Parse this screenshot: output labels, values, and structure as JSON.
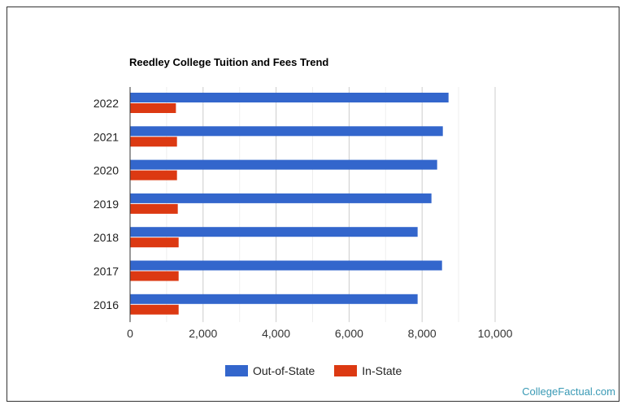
{
  "chart_data": {
    "type": "bar",
    "orientation": "horizontal",
    "title": "Reedley College Tuition and Fees Trend",
    "categories": [
      "2022",
      "2021",
      "2020",
      "2019",
      "2018",
      "2017",
      "2016"
    ],
    "series": [
      {
        "name": "Out-of-State",
        "color": "#3366cc",
        "values": [
          8724,
          8568,
          8412,
          8256,
          7877,
          8546,
          7877
        ]
      },
      {
        "name": "In-State",
        "color": "#dc3912",
        "values": [
          1256,
          1285,
          1285,
          1307,
          1330,
          1330,
          1330
        ]
      }
    ],
    "xlim": [
      0,
      10000
    ],
    "xticks": [
      "0",
      "2,000",
      "4,000",
      "6,000",
      "8,000",
      "10,000"
    ],
    "grid": true,
    "legend_position": "bottom"
  },
  "brand": "CollegeFactual.com"
}
